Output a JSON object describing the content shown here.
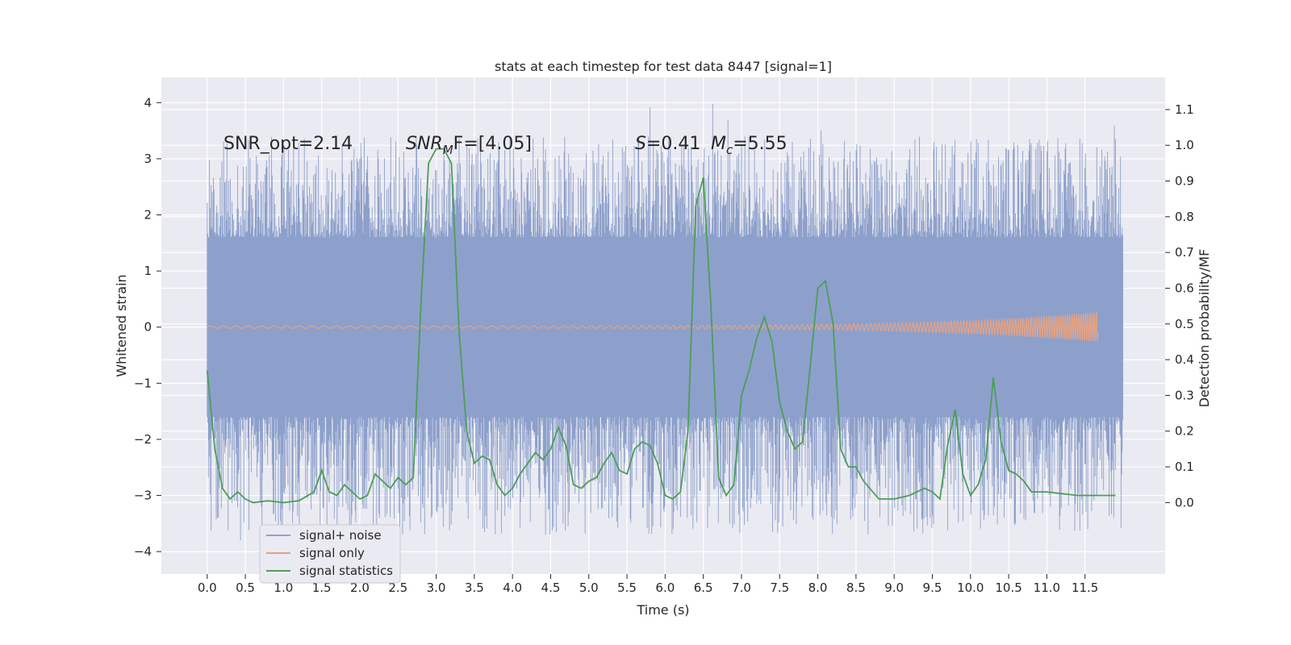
{
  "chart_data": {
    "type": "line",
    "title": "stats at each timestep for test data 8447 [signal=1]",
    "xlabel": "Time (s)",
    "ylabel_left": "Whitened strain",
    "ylabel_right": "Detection probability/MF",
    "xlim": [
      -0.6,
      12.55
    ],
    "ylim_left": [
      -4.4,
      4.45
    ],
    "ylim_right": [
      -0.2,
      1.19
    ],
    "x_ticks": [
      0.0,
      0.5,
      1.0,
      1.5,
      2.0,
      2.5,
      3.0,
      3.5,
      4.0,
      4.5,
      5.0,
      5.5,
      6.0,
      6.5,
      7.0,
      7.5,
      8.0,
      8.5,
      9.0,
      9.5,
      10.0,
      10.5,
      11.0,
      11.5
    ],
    "x_tick_labels": [
      "0.0",
      "0.5",
      "1.0",
      "1.5",
      "2.0",
      "2.5",
      "3.0",
      "3.5",
      "4.0",
      "4.5",
      "5.0",
      "5.5",
      "6.0",
      "6.5",
      "7.0",
      "7.5",
      "8.0",
      "8.5",
      "9.0",
      "9.5",
      "10.0",
      "10.5",
      "11.0",
      "11.5"
    ],
    "y_ticks_left": [
      -4,
      -3,
      -2,
      -1,
      0,
      1,
      2,
      3,
      4
    ],
    "y_tick_labels_left": [
      "−4",
      "−3",
      "−2",
      "−1",
      "0",
      "1",
      "2",
      "3",
      "4"
    ],
    "y_ticks_right": [
      0.0,
      0.1,
      0.2,
      0.3,
      0.4,
      0.5,
      0.6,
      0.7,
      0.8,
      0.9,
      1.0,
      1.1
    ],
    "y_tick_labels_right": [
      "0.0",
      "0.1",
      "0.2",
      "0.3",
      "0.4",
      "0.5",
      "0.6",
      "0.7",
      "0.8",
      "0.9",
      "1.0",
      "1.1"
    ],
    "grid": true,
    "legend_placement": "lower-left",
    "annotations": [
      {
        "text": "SNR_opt=2.14",
        "x": 0.2,
        "y": 3.2
      },
      {
        "text": "SNR_MF=[4.05]",
        "x": 2.6,
        "y": 3.2,
        "main": "SNR",
        "sub": "M",
        "rest": "F=[4.05]"
      },
      {
        "text": "S=0.41",
        "x": 5.6,
        "y": 3.2,
        "italic": "S",
        "rest": "=0.41"
      },
      {
        "text": "M_c=5.55",
        "x": 6.6,
        "y": 3.2,
        "main": "M",
        "sub": "c",
        "rest": "=5.55"
      }
    ],
    "series": [
      {
        "name": "signal+ noise",
        "axis": "left",
        "color": "#8da0cb",
        "style": "dense-noise",
        "x_range": [
          0.0,
          12.0
        ],
        "core_band": [
          -1.35,
          1.35
        ],
        "typical_extent": [
          -3.0,
          2.6
        ],
        "max": 4.08,
        "min": -3.9
      },
      {
        "name": "signal only",
        "axis": "left",
        "color": "#e5a383",
        "style": "chirp",
        "x_range": [
          0.0,
          11.67
        ],
        "peak_amplitude": 0.25
      },
      {
        "name": "signal statistics",
        "axis": "right",
        "color": "#4c9e57",
        "x": [
          0.0,
          0.1,
          0.2,
          0.3,
          0.4,
          0.5,
          0.6,
          0.8,
          1.0,
          1.2,
          1.4,
          1.5,
          1.6,
          1.7,
          1.8,
          1.9,
          2.0,
          2.1,
          2.2,
          2.3,
          2.4,
          2.5,
          2.6,
          2.7,
          2.8,
          2.9,
          3.0,
          3.1,
          3.2,
          3.3,
          3.4,
          3.5,
          3.6,
          3.7,
          3.8,
          3.9,
          4.0,
          4.1,
          4.2,
          4.3,
          4.4,
          4.5,
          4.6,
          4.7,
          4.8,
          4.9,
          5.0,
          5.1,
          5.2,
          5.3,
          5.4,
          5.5,
          5.6,
          5.7,
          5.8,
          5.9,
          6.0,
          6.1,
          6.2,
          6.3,
          6.4,
          6.5,
          6.6,
          6.7,
          6.8,
          6.9,
          7.0,
          7.1,
          7.2,
          7.3,
          7.4,
          7.5,
          7.6,
          7.7,
          7.8,
          7.9,
          8.0,
          8.1,
          8.2,
          8.3,
          8.4,
          8.5,
          8.6,
          8.8,
          9.0,
          9.2,
          9.4,
          9.5,
          9.6,
          9.7,
          9.8,
          9.9,
          10.0,
          10.1,
          10.2,
          10.3,
          10.4,
          10.5,
          10.6,
          10.7,
          10.8,
          11.0,
          11.2,
          11.4,
          11.6,
          11.8,
          11.9
        ],
        "y": [
          0.37,
          0.15,
          0.04,
          0.01,
          0.03,
          0.01,
          0.0,
          0.005,
          0.0,
          0.005,
          0.03,
          0.09,
          0.03,
          0.02,
          0.05,
          0.03,
          0.01,
          0.02,
          0.08,
          0.06,
          0.04,
          0.07,
          0.05,
          0.07,
          0.55,
          0.95,
          0.99,
          0.99,
          0.95,
          0.48,
          0.2,
          0.11,
          0.13,
          0.12,
          0.05,
          0.02,
          0.04,
          0.08,
          0.11,
          0.14,
          0.12,
          0.15,
          0.21,
          0.16,
          0.05,
          0.04,
          0.06,
          0.07,
          0.11,
          0.14,
          0.09,
          0.08,
          0.15,
          0.17,
          0.16,
          0.11,
          0.02,
          0.01,
          0.03,
          0.2,
          0.83,
          0.91,
          0.55,
          0.07,
          0.02,
          0.05,
          0.3,
          0.37,
          0.46,
          0.52,
          0.45,
          0.28,
          0.2,
          0.15,
          0.17,
          0.38,
          0.6,
          0.62,
          0.5,
          0.15,
          0.1,
          0.1,
          0.06,
          0.01,
          0.01,
          0.02,
          0.04,
          0.03,
          0.01,
          0.16,
          0.26,
          0.08,
          0.02,
          0.05,
          0.12,
          0.35,
          0.17,
          0.09,
          0.08,
          0.06,
          0.03,
          0.03,
          0.025,
          0.02,
          0.02,
          0.02,
          0.02
        ]
      }
    ]
  }
}
